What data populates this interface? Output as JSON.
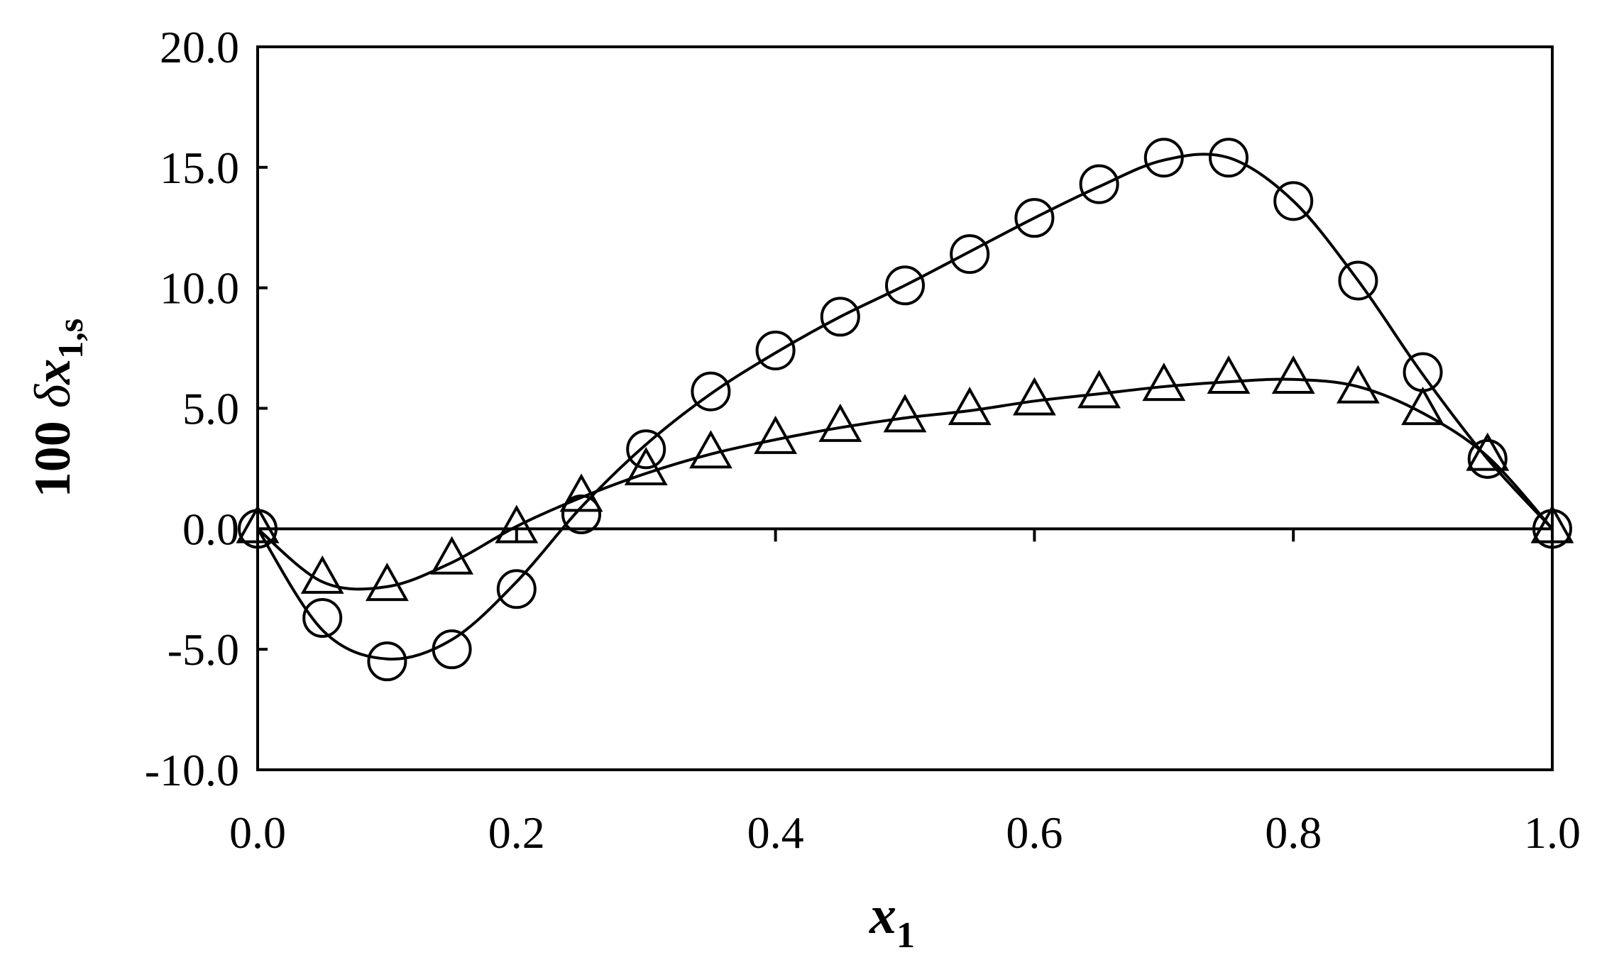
{
  "chart_data": {
    "type": "scatter",
    "title": "",
    "xlabel": {
      "text": "x",
      "sub": "1"
    },
    "ylabel": {
      "prefix": "100 ",
      "delta": "δ",
      "var": "x",
      "sub": "1,s"
    },
    "xlim": [
      0.0,
      1.0
    ],
    "ylim": [
      -10.0,
      20.0
    ],
    "x_ticks": [
      "0.0",
      "0.2",
      "0.4",
      "0.6",
      "0.8",
      "1.0"
    ],
    "y_ticks": [
      "-10.0",
      "-5.0",
      "0.0",
      "5.0",
      "10.0",
      "15.0",
      "20.0"
    ],
    "grid": false,
    "legend": "none",
    "colors": {
      "ink": "#000000",
      "background": "#ffffff"
    },
    "series": [
      {
        "marker": "circle",
        "x": [
          0.0,
          0.05,
          0.1,
          0.15,
          0.2,
          0.25,
          0.3,
          0.35,
          0.4,
          0.45,
          0.5,
          0.55,
          0.6,
          0.65,
          0.7,
          0.75,
          0.8,
          0.85,
          0.9,
          0.95,
          1.0
        ],
        "y": [
          0.0,
          -3.7,
          -5.5,
          -5.0,
          -2.5,
          0.6,
          3.3,
          5.7,
          7.4,
          8.8,
          10.1,
          11.4,
          12.9,
          14.3,
          15.4,
          15.4,
          13.6,
          10.3,
          6.5,
          2.9,
          0.0
        ],
        "fit_y": [
          0.0,
          -4.2,
          -5.4,
          -4.6,
          -2.2,
          0.9,
          3.5,
          5.6,
          7.3,
          8.8,
          10.1,
          11.5,
          12.9,
          14.2,
          15.3,
          15.4,
          13.6,
          10.3,
          6.4,
          2.9,
          0.0
        ]
      },
      {
        "marker": "triangle",
        "x": [
          0.0,
          0.05,
          0.1,
          0.15,
          0.2,
          0.25,
          0.3,
          0.35,
          0.4,
          0.45,
          0.5,
          0.55,
          0.6,
          0.65,
          0.7,
          0.75,
          0.8,
          0.85,
          0.9,
          0.95,
          1.0
        ],
        "y": [
          0.0,
          -2.1,
          -2.4,
          -1.3,
          0.0,
          1.3,
          2.4,
          3.1,
          3.7,
          4.2,
          4.6,
          4.9,
          5.3,
          5.6,
          5.9,
          6.2,
          6.2,
          5.8,
          4.9,
          3.0,
          0.0
        ],
        "fit_y": [
          0.0,
          -2.2,
          -2.4,
          -1.4,
          0.1,
          1.3,
          2.3,
          3.1,
          3.7,
          4.2,
          4.6,
          4.9,
          5.3,
          5.6,
          5.9,
          6.1,
          6.2,
          5.9,
          4.8,
          3.0,
          0.0
        ]
      }
    ]
  }
}
